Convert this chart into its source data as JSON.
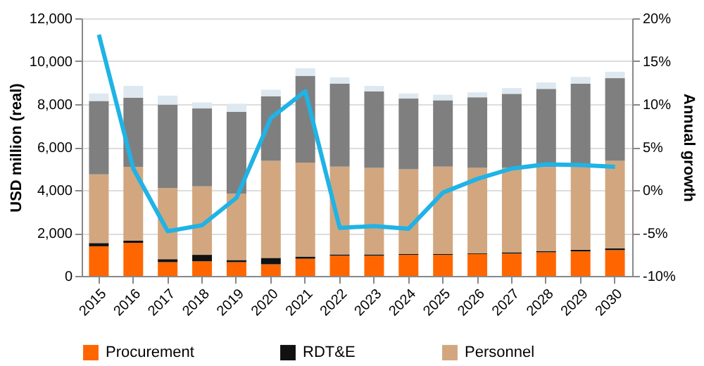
{
  "chart_data": {
    "type": "bar",
    "stacked": true,
    "ylabel": "USD million (real)",
    "y2label": "Annual growth",
    "categories": [
      "2015",
      "2016",
      "2017",
      "2018",
      "2019",
      "2020",
      "2021",
      "2022",
      "2023",
      "2024",
      "2025",
      "2026",
      "2027",
      "2028",
      "2029",
      "2030"
    ],
    "series": [
      {
        "name": "Procurement",
        "color": "#ff6600",
        "values": [
          1380,
          1540,
          640,
          680,
          640,
          540,
          800,
          940,
          940,
          980,
          980,
          1020,
          1040,
          1100,
          1140,
          1200
        ]
      },
      {
        "name": "RDT&E",
        "color": "#111111",
        "values": [
          150,
          100,
          140,
          300,
          100,
          300,
          100,
          60,
          60,
          40,
          40,
          40,
          60,
          60,
          80,
          80
        ]
      },
      {
        "name": "Personnel",
        "color": "#d2a77f",
        "values": [
          3200,
          3440,
          3310,
          3190,
          3090,
          4520,
          4380,
          4090,
          4030,
          3950,
          4070,
          3970,
          3930,
          3910,
          3870,
          4080
        ]
      },
      {
        "color": "#7f7f7f",
        "values": [
          3420,
          3220,
          3890,
          3630,
          3810,
          3010,
          4030,
          3860,
          3570,
          3290,
          3090,
          3290,
          3450,
          3640,
          3860,
          3850
        ]
      },
      {
        "color": "#dde8f0",
        "values": [
          350,
          550,
          420,
          280,
          380,
          300,
          360,
          300,
          250,
          240,
          260,
          230,
          270,
          300,
          320,
          300
        ]
      },
      {
        "type": "line",
        "axis": "y2",
        "color": "#1fb3e6",
        "values": [
          18.1,
          2.5,
          -4.8,
          -4.1,
          -0.9,
          8.4,
          11.5,
          -4.4,
          -4.2,
          -4.5,
          -0.3,
          1.3,
          2.5,
          3.0,
          2.9,
          2.7
        ]
      }
    ],
    "ylim": [
      0,
      12000
    ],
    "yticks": [
      0,
      {
        "value": 2000,
        "label": "2,000"
      },
      {
        "value": 4000,
        "label": "4,000"
      },
      {
        "value": 6000,
        "label": "6,000"
      },
      {
        "value": 8000,
        "label": "8,000"
      },
      {
        "value": 10000,
        "label": "10,000"
      },
      {
        "value": 12000,
        "label": "12,000"
      }
    ],
    "y2lim": [
      -10,
      20
    ],
    "y2ticks": [
      {
        "value": -10,
        "label": "-10%"
      },
      {
        "value": -5,
        "label": "-5%"
      },
      {
        "value": 0,
        "label": "0%"
      },
      {
        "value": 5,
        "label": "5%"
      },
      {
        "value": 10,
        "label": "10%"
      },
      {
        "value": 15,
        "label": "15%"
      },
      {
        "value": 20,
        "label": "20%"
      }
    ],
    "grid": "y",
    "legend": "bottom",
    "line_style": "solid",
    "marker": "none"
  }
}
